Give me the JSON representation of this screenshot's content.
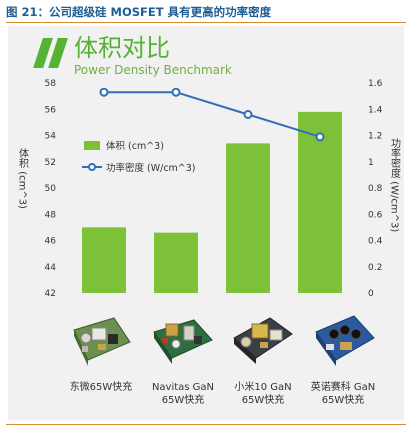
{
  "figure_title": "图 21：公司超级硅 MOSFET 具有更高的功率密度",
  "benchmark": {
    "title": "体积对比",
    "subtitle": "Power Density Benchmark"
  },
  "chart_data": {
    "type": "bar",
    "categories": [
      "东微65W快充",
      "Navitas GaN 65W快充",
      "小米10 GaN 65W快充",
      "英诺赛科 GaN 65W快充"
    ],
    "category_lines": [
      [
        "东微65W快充"
      ],
      [
        "Navitas GaN",
        "65W快充"
      ],
      [
        "小米10 GaN",
        "65W快充"
      ],
      [
        "英诺赛科 GaN",
        "65W快充"
      ]
    ],
    "series": [
      {
        "name": "体积 (cm^3)",
        "type": "bar",
        "axis": "left",
        "values": [
          47.0,
          46.6,
          53.4,
          55.8
        ],
        "color": "#7cc137"
      },
      {
        "name": "功率密度 (W/cm^3)",
        "type": "line",
        "axis": "right",
        "values": [
          1.53,
          1.53,
          1.36,
          1.19
        ],
        "color": "#2f6fb6"
      }
    ],
    "ylabel": "体积 (cm^3)",
    "y2label": "功率密度 (W/cm^3)",
    "ylim": [
      42,
      58
    ],
    "y2lim": [
      0,
      1.6
    ],
    "yticks": [
      "42",
      "44",
      "46",
      "48",
      "50",
      "52",
      "54",
      "56",
      "58"
    ],
    "y2ticks": [
      "0",
      "0.2",
      "0.4",
      "0.6",
      "0.8",
      "1",
      "1.2",
      "1.4",
      "1.6"
    ],
    "legend_position": "center-left",
    "grid": false
  },
  "icons": [
    "charger-board-photo-1",
    "charger-board-photo-2",
    "charger-board-photo-3",
    "charger-board-photo-4"
  ]
}
